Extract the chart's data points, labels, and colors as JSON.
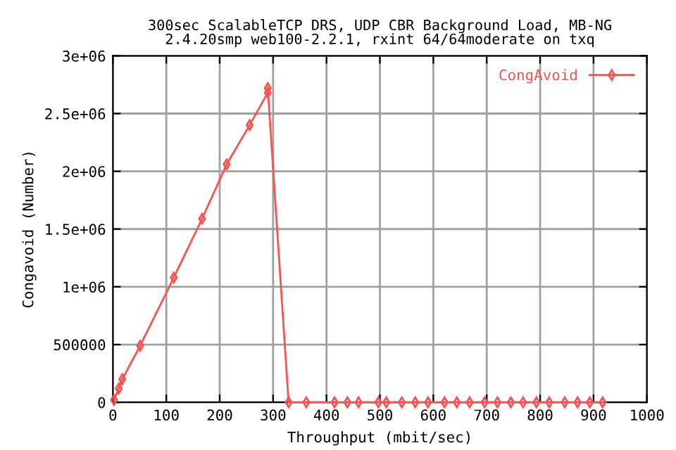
{
  "chart_data": {
    "type": "line",
    "title": "300sec ScalableTCP DRS, UDP CBR Background Load, MB-NG\n2.4.20smp web100-2.2.1, rxint 64/64moderate on txq",
    "xlabel": "Throughput (mbit/sec)",
    "ylabel": "Congavoid (Number)",
    "series": [
      {
        "name": "CongAvoid",
        "color": "#ff5050",
        "x": [
          2,
          11,
          17.5,
          51,
          114,
          167,
          213,
          256,
          290,
          290,
          329,
          362,
          415,
          439,
          460,
          497,
          512,
          541,
          566,
          590,
          621,
          644,
          668,
          696,
          720,
          745,
          768,
          793,
          817,
          846,
          870,
          893,
          917
        ],
        "values": [
          20000,
          120000,
          200000,
          490000,
          1080000,
          1590000,
          2060000,
          2400000,
          2680000,
          2720000,
          0,
          0,
          0,
          0,
          0,
          0,
          0,
          0,
          0,
          0,
          0,
          0,
          0,
          0,
          0,
          0,
          0,
          0,
          0,
          0,
          0,
          0,
          0
        ]
      }
    ],
    "xlim": [
      0,
      1000
    ],
    "xticks": [
      0,
      100,
      200,
      300,
      400,
      500,
      600,
      700,
      800,
      900,
      1000
    ],
    "ylim": [
      0,
      3000000
    ],
    "yticks": [
      {
        "value": 0,
        "label": "0"
      },
      {
        "value": 500000,
        "label": "500000"
      },
      {
        "value": 1000000,
        "label": "1e+06"
      },
      {
        "value": 1500000,
        "label": "1.5e+06"
      },
      {
        "value": 2000000,
        "label": "2e+06"
      },
      {
        "value": 2500000,
        "label": "2.5e+06"
      },
      {
        "value": 3000000,
        "label": "3e+06"
      }
    ],
    "grid": true,
    "legend": "top right",
    "marker": "diamond",
    "line_style": "solid"
  }
}
